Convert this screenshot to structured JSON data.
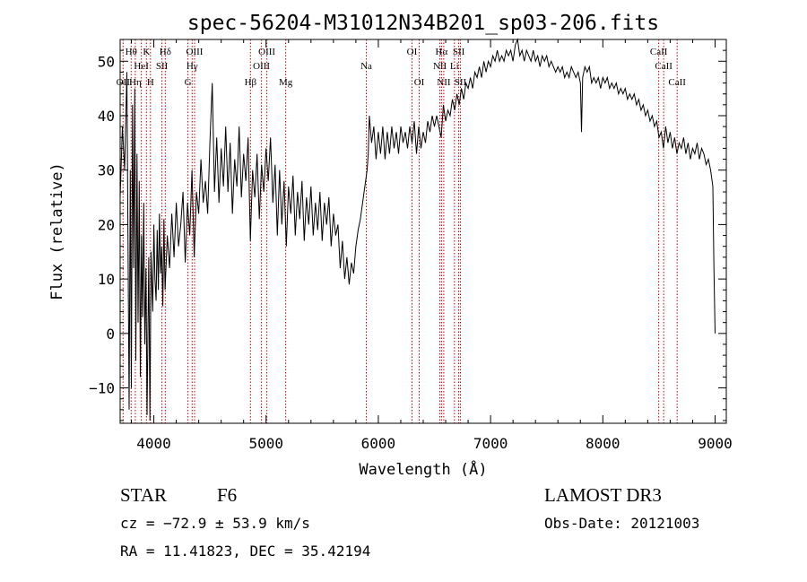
{
  "chart_data": {
    "type": "line",
    "title": "spec-56204-M31012N34B201_sp03-206.fits",
    "xlabel": "Wavelength (Å)",
    "ylabel": "Flux (relative)",
    "xlim": [
      3700,
      9100
    ],
    "ylim": [
      -16.5,
      54
    ],
    "x_ticks": [
      4000,
      5000,
      6000,
      7000,
      8000,
      9000
    ],
    "y_ticks": [
      -10,
      0,
      10,
      20,
      30,
      40,
      50
    ],
    "grid": false,
    "colors": {
      "spectrum": "#000000",
      "line_markers": "#cc0000"
    },
    "series": [
      {
        "values": [
          [
            3700,
            25
          ],
          [
            3720,
            38
          ],
          [
            3740,
            30
          ],
          [
            3760,
            48
          ],
          [
            3780,
            -14
          ],
          [
            3790,
            30
          ],
          [
            3800,
            -10
          ],
          [
            3810,
            42
          ],
          [
            3820,
            12
          ],
          [
            3830,
            45
          ],
          [
            3840,
            -5
          ],
          [
            3850,
            33
          ],
          [
            3860,
            2
          ],
          [
            3870,
            28
          ],
          [
            3880,
            -8
          ],
          [
            3890,
            18
          ],
          [
            3900,
            3
          ],
          [
            3910,
            24
          ],
          [
            3920,
            -2
          ],
          [
            3930,
            12
          ],
          [
            3940,
            -15
          ],
          [
            3955,
            14
          ],
          [
            3965,
            -16
          ],
          [
            3975,
            15
          ],
          [
            3990,
            4
          ],
          [
            4000,
            20
          ],
          [
            4010,
            10
          ],
          [
            4020,
            6
          ],
          [
            4030,
            19
          ],
          [
            4040,
            8
          ],
          [
            4050,
            22
          ],
          [
            4060,
            11
          ],
          [
            4070,
            16
          ],
          [
            4080,
            5
          ],
          [
            4090,
            21
          ],
          [
            4100,
            8
          ],
          [
            4120,
            18
          ],
          [
            4140,
            12
          ],
          [
            4160,
            22
          ],
          [
            4180,
            14
          ],
          [
            4200,
            24
          ],
          [
            4220,
            16
          ],
          [
            4240,
            20
          ],
          [
            4260,
            26
          ],
          [
            4280,
            13
          ],
          [
            4300,
            24
          ],
          [
            4320,
            18
          ],
          [
            4340,
            30
          ],
          [
            4360,
            14
          ],
          [
            4380,
            26
          ],
          [
            4400,
            22
          ],
          [
            4420,
            32
          ],
          [
            4440,
            24
          ],
          [
            4460,
            28
          ],
          [
            4480,
            22
          ],
          [
            4500,
            35
          ],
          [
            4520,
            46
          ],
          [
            4540,
            26
          ],
          [
            4560,
            36
          ],
          [
            4580,
            24
          ],
          [
            4600,
            34
          ],
          [
            4620,
            27
          ],
          [
            4640,
            38
          ],
          [
            4660,
            26
          ],
          [
            4680,
            35
          ],
          [
            4700,
            22
          ],
          [
            4720,
            32
          ],
          [
            4740,
            27
          ],
          [
            4760,
            38
          ],
          [
            4780,
            25
          ],
          [
            4800,
            33
          ],
          [
            4820,
            28
          ],
          [
            4840,
            36
          ],
          [
            4860,
            17
          ],
          [
            4880,
            30
          ],
          [
            4900,
            25
          ],
          [
            4920,
            33
          ],
          [
            4940,
            21
          ],
          [
            4960,
            31
          ],
          [
            4980,
            26
          ],
          [
            5000,
            34
          ],
          [
            5020,
            28
          ],
          [
            5040,
            36
          ],
          [
            5060,
            24
          ],
          [
            5080,
            31
          ],
          [
            5100,
            18
          ],
          [
            5120,
            30
          ],
          [
            5140,
            20
          ],
          [
            5160,
            28
          ],
          [
            5180,
            16
          ],
          [
            5200,
            27
          ],
          [
            5220,
            22
          ],
          [
            5240,
            29
          ],
          [
            5260,
            18
          ],
          [
            5280,
            26
          ],
          [
            5300,
            21
          ],
          [
            5320,
            28
          ],
          [
            5340,
            17
          ],
          [
            5360,
            25
          ],
          [
            5380,
            20
          ],
          [
            5400,
            27
          ],
          [
            5420,
            18
          ],
          [
            5440,
            24
          ],
          [
            5460,
            19
          ],
          [
            5480,
            26
          ],
          [
            5500,
            17
          ],
          [
            5520,
            24
          ],
          [
            5540,
            20
          ],
          [
            5560,
            25
          ],
          [
            5580,
            16
          ],
          [
            5600,
            22
          ],
          [
            5620,
            18
          ],
          [
            5640,
            20
          ],
          [
            5660,
            12
          ],
          [
            5680,
            17
          ],
          [
            5700,
            10
          ],
          [
            5720,
            14
          ],
          [
            5740,
            9
          ],
          [
            5760,
            13
          ],
          [
            5780,
            11
          ],
          [
            5800,
            16
          ],
          [
            5820,
            19
          ],
          [
            5840,
            21
          ],
          [
            5860,
            24
          ],
          [
            5880,
            27
          ],
          [
            5900,
            30
          ],
          [
            5910,
            33
          ],
          [
            5920,
            40
          ],
          [
            5940,
            35
          ],
          [
            5960,
            38
          ],
          [
            5980,
            32
          ],
          [
            6000,
            37
          ],
          [
            6020,
            33
          ],
          [
            6040,
            38
          ],
          [
            6060,
            32
          ],
          [
            6080,
            37
          ],
          [
            6100,
            33
          ],
          [
            6120,
            38
          ],
          [
            6140,
            34
          ],
          [
            6160,
            37
          ],
          [
            6180,
            33
          ],
          [
            6200,
            38
          ],
          [
            6220,
            35
          ],
          [
            6240,
            37
          ],
          [
            6260,
            34
          ],
          [
            6280,
            38
          ],
          [
            6300,
            35
          ],
          [
            6320,
            39
          ],
          [
            6340,
            33
          ],
          [
            6360,
            38
          ],
          [
            6380,
            34
          ],
          [
            6400,
            37
          ],
          [
            6420,
            35
          ],
          [
            6440,
            39
          ],
          [
            6460,
            37
          ],
          [
            6480,
            40
          ],
          [
            6500,
            38
          ],
          [
            6520,
            40
          ],
          [
            6540,
            38
          ],
          [
            6560,
            36
          ],
          [
            6580,
            42
          ],
          [
            6600,
            39
          ],
          [
            6620,
            41
          ],
          [
            6640,
            40
          ],
          [
            6660,
            43
          ],
          [
            6680,
            41
          ],
          [
            6700,
            44
          ],
          [
            6720,
            42
          ],
          [
            6740,
            45
          ],
          [
            6760,
            43
          ],
          [
            6780,
            46
          ],
          [
            6800,
            45
          ],
          [
            6820,
            47
          ],
          [
            6840,
            45
          ],
          [
            6860,
            48
          ],
          [
            6880,
            47
          ],
          [
            6900,
            49
          ],
          [
            6920,
            47
          ],
          [
            6940,
            50
          ],
          [
            6960,
            48
          ],
          [
            6980,
            50
          ],
          [
            7000,
            49
          ],
          [
            7020,
            51
          ],
          [
            7040,
            50
          ],
          [
            7060,
            52
          ],
          [
            7080,
            50
          ],
          [
            7100,
            51
          ],
          [
            7120,
            50
          ],
          [
            7140,
            52
          ],
          [
            7160,
            51
          ],
          [
            7180,
            52
          ],
          [
            7200,
            50
          ],
          [
            7220,
            53
          ],
          [
            7240,
            54
          ],
          [
            7260,
            51
          ],
          [
            7280,
            52
          ],
          [
            7300,
            50
          ],
          [
            7320,
            52
          ],
          [
            7340,
            51
          ],
          [
            7360,
            50
          ],
          [
            7380,
            52
          ],
          [
            7400,
            50
          ],
          [
            7420,
            51
          ],
          [
            7440,
            49
          ],
          [
            7460,
            51
          ],
          [
            7480,
            50
          ],
          [
            7500,
            51
          ],
          [
            7520,
            49
          ],
          [
            7540,
            50
          ],
          [
            7560,
            49
          ],
          [
            7580,
            48
          ],
          [
            7600,
            49
          ],
          [
            7620,
            48
          ],
          [
            7640,
            49
          ],
          [
            7660,
            47
          ],
          [
            7680,
            48
          ],
          [
            7700,
            47
          ],
          [
            7720,
            49
          ],
          [
            7740,
            48
          ],
          [
            7760,
            47
          ],
          [
            7780,
            48
          ],
          [
            7800,
            46
          ],
          [
            7810,
            37
          ],
          [
            7820,
            47
          ],
          [
            7840,
            49
          ],
          [
            7860,
            48
          ],
          [
            7880,
            49
          ],
          [
            7900,
            46
          ],
          [
            7920,
            47
          ],
          [
            7940,
            46
          ],
          [
            7960,
            47
          ],
          [
            7980,
            45
          ],
          [
            8000,
            47
          ],
          [
            8020,
            46
          ],
          [
            8040,
            47
          ],
          [
            8060,
            45
          ],
          [
            8080,
            46
          ],
          [
            8100,
            45
          ],
          [
            8120,
            46
          ],
          [
            8140,
            44
          ],
          [
            8160,
            45
          ],
          [
            8180,
            44
          ],
          [
            8200,
            45
          ],
          [
            8220,
            43
          ],
          [
            8240,
            44
          ],
          [
            8260,
            43
          ],
          [
            8280,
            44
          ],
          [
            8300,
            42
          ],
          [
            8320,
            43
          ],
          [
            8340,
            41
          ],
          [
            8360,
            42
          ],
          [
            8380,
            40
          ],
          [
            8400,
            41
          ],
          [
            8420,
            39
          ],
          [
            8440,
            40
          ],
          [
            8460,
            38
          ],
          [
            8480,
            39
          ],
          [
            8500,
            36
          ],
          [
            8520,
            37
          ],
          [
            8540,
            34
          ],
          [
            8560,
            38
          ],
          [
            8580,
            35
          ],
          [
            8600,
            37
          ],
          [
            8620,
            34
          ],
          [
            8640,
            36
          ],
          [
            8660,
            33
          ],
          [
            8680,
            35
          ],
          [
            8700,
            34
          ],
          [
            8720,
            36
          ],
          [
            8740,
            33
          ],
          [
            8760,
            35
          ],
          [
            8780,
            32
          ],
          [
            8800,
            34
          ],
          [
            8820,
            33
          ],
          [
            8840,
            35
          ],
          [
            8860,
            32
          ],
          [
            8880,
            34
          ],
          [
            8900,
            33
          ],
          [
            8920,
            31
          ],
          [
            8940,
            32
          ],
          [
            8960,
            30
          ],
          [
            8980,
            27
          ],
          [
            8990,
            12
          ],
          [
            9000,
            0
          ]
        ]
      }
    ],
    "line_markers": [
      {
        "wavelength": 3726,
        "label": "OII",
        "row": 3
      },
      {
        "wavelength": 3798,
        "label": "Hθ",
        "row": 1
      },
      {
        "wavelength": 3835,
        "label": "Hη",
        "row": 3
      },
      {
        "wavelength": 3889,
        "label": "HeI",
        "row": 2
      },
      {
        "wavelength": 3934,
        "label": "K",
        "row": 1
      },
      {
        "wavelength": 3970,
        "label": "H",
        "row": 3
      },
      {
        "wavelength": 4072,
        "label": "SII",
        "row": 2
      },
      {
        "wavelength": 4102,
        "label": "Hδ",
        "row": 1
      },
      {
        "wavelength": 4304,
        "label": "G",
        "row": 3
      },
      {
        "wavelength": 4341,
        "label": "Hγ",
        "row": 2
      },
      {
        "wavelength": 4363,
        "label": "OIII",
        "row": 1
      },
      {
        "wavelength": 4861,
        "label": "Hβ",
        "row": 3
      },
      {
        "wavelength": 4959,
        "label": "OIII",
        "row": 2
      },
      {
        "wavelength": 5007,
        "label": "OIII",
        "row": 1
      },
      {
        "wavelength": 5175,
        "label": "Mg",
        "row": 3
      },
      {
        "wavelength": 5893,
        "label": "Na",
        "row": 2
      },
      {
        "wavelength": 6300,
        "label": "OI",
        "row": 1
      },
      {
        "wavelength": 6364,
        "label": "OI",
        "row": 3
      },
      {
        "wavelength": 6548,
        "label": "NII",
        "row": 2
      },
      {
        "wavelength": 6563,
        "label": "Hα",
        "row": 1
      },
      {
        "wavelength": 6583,
        "label": "NII",
        "row": 3
      },
      {
        "wavelength": 6678,
        "label": "Li",
        "row": 2
      },
      {
        "wavelength": 6716,
        "label": "SII",
        "row": 1
      },
      {
        "wavelength": 6731,
        "label": "SII",
        "row": 3
      },
      {
        "wavelength": 8498,
        "label": "CaII",
        "row": 1
      },
      {
        "wavelength": 8542,
        "label": "CaII",
        "row": 2
      },
      {
        "wavelength": 8662,
        "label": "CaII",
        "row": 3
      }
    ]
  },
  "info": {
    "object_class": "STAR",
    "subclass": "F6",
    "survey": "LAMOST DR3",
    "velocity": "cz = −72.9 ± 53.9 km/s",
    "obs_date": "Obs-Date: 20121003",
    "coords": "RA =  11.41823, DEC =  35.42194"
  }
}
